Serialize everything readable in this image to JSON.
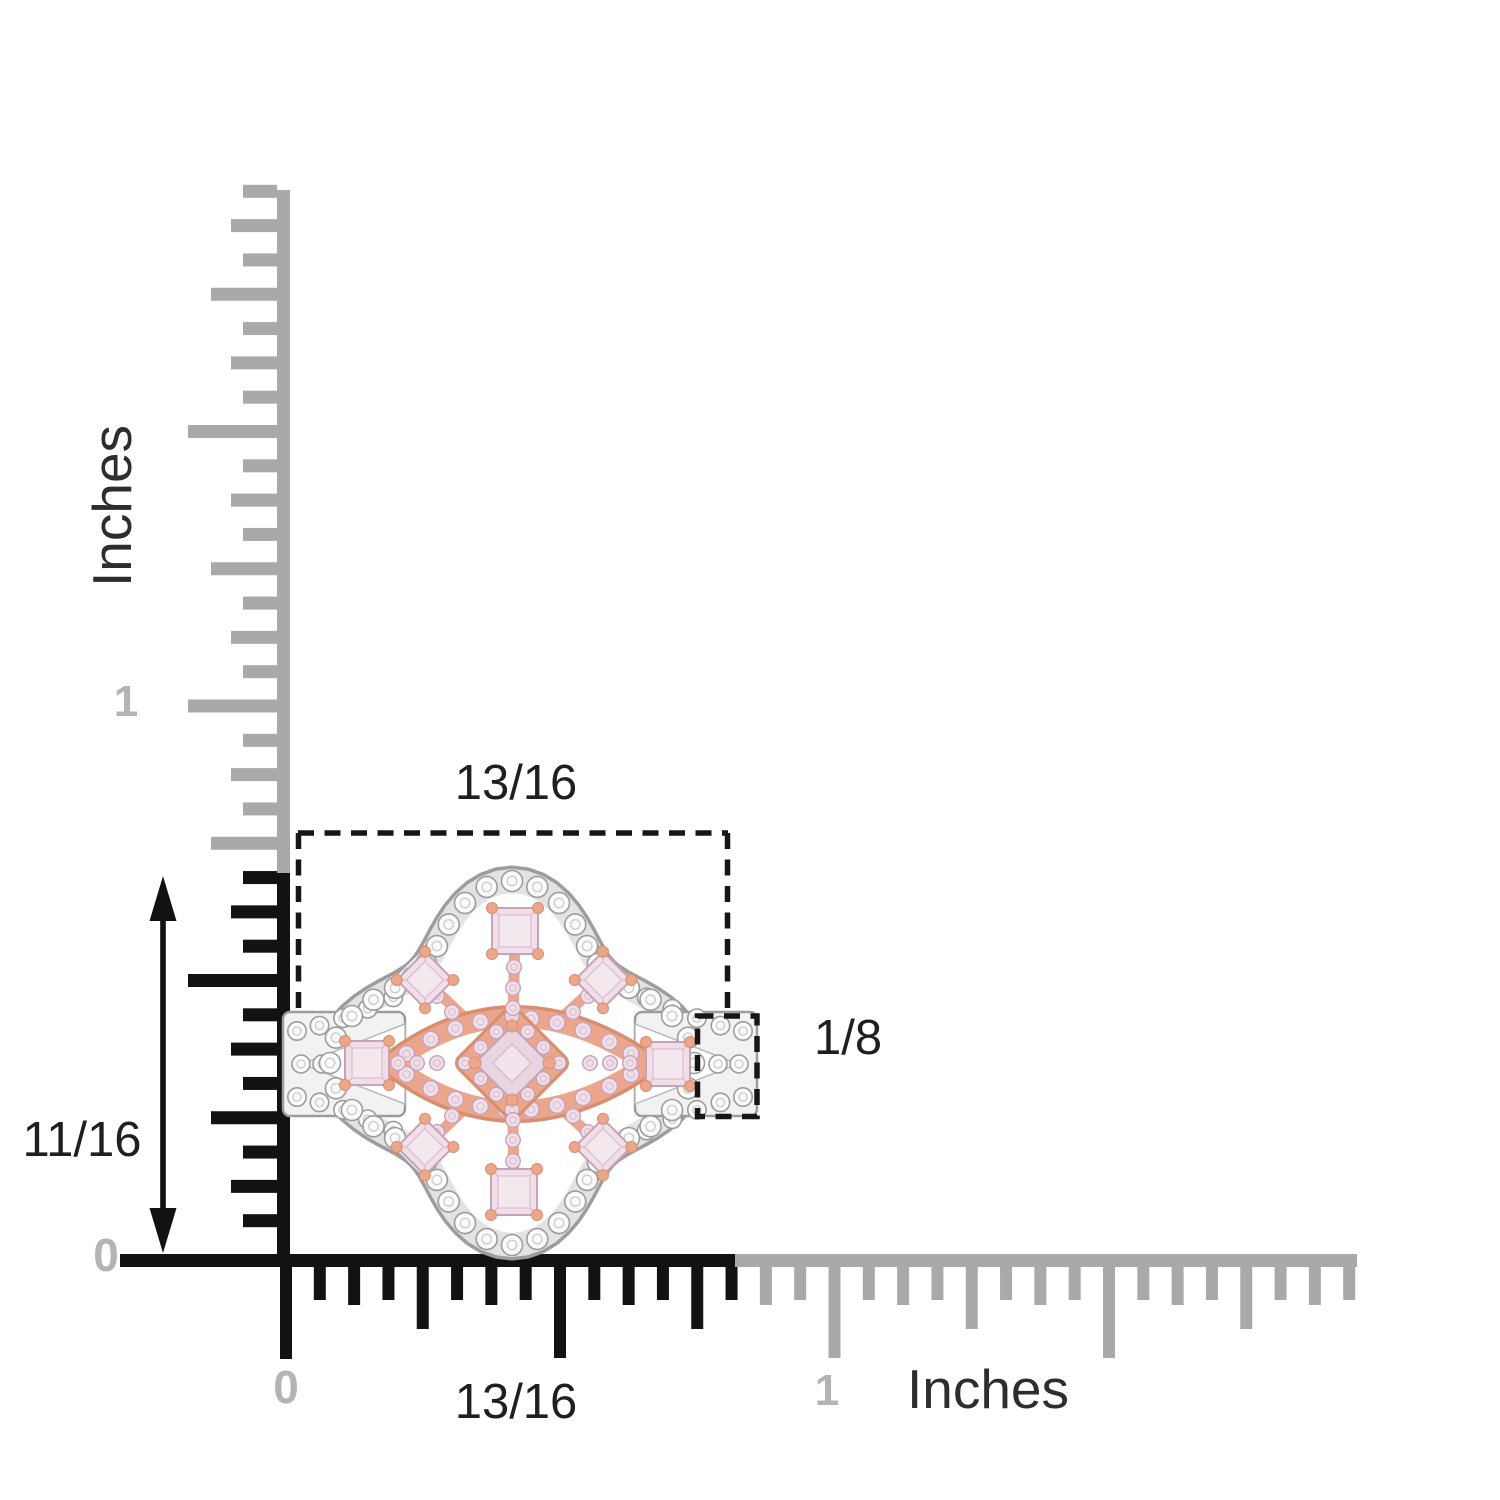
{
  "diagram": {
    "type": "product-measurement-diagram",
    "unit_system": "Inches",
    "vertical_ruler": {
      "unit_label": "Inches",
      "zero_label": "0",
      "inch_label": "1",
      "measured_span": "11/16",
      "range_inches": [
        0,
        1.94
      ]
    },
    "horizontal_ruler": {
      "unit_label": "Inches",
      "zero_label": "0",
      "inch_label": "1",
      "measured_span": "13/16",
      "range_inches": [
        0,
        1.94
      ]
    }
  },
  "labels": {
    "top_width": "13/16",
    "bottom_width": "13/16",
    "side_height": "11/16",
    "band_width": "1/8",
    "v_zero": "0",
    "v_one": "1",
    "h_zero": "0",
    "h_one": "1",
    "v_unit": "Inches",
    "h_unit": "Inches"
  },
  "product": {
    "description": "Two-tone ring with pink diamond cluster, rose gold compass motif, white diamond quatrefoil halo and split shank"
  },
  "colors": {
    "ruler_active": "#121212",
    "ruler_inactive": "#a9a9a9",
    "ruler_label_gray": "#b4b4b4",
    "annotation_text": "#1f1f1f",
    "dash_line": "#161616",
    "metal_light": "#f2f2f2",
    "metal_mid": "#e3e3e3",
    "metal_edge": "#9d9d9d",
    "white_stone": "#fbfbfb",
    "white_stone_edge": "#9c9c9c",
    "white_stone_facet": "#cdcdcd",
    "rose_gold": "#eba68b",
    "rose_gold_dark": "#d88f6d",
    "pink_stone": "#f0dfe9",
    "pink_stone_edge": "#c9a2b8",
    "pink_stone_facet": "#ddc1d0",
    "center_stone": "#e9d4e1",
    "center_stone_facet": "#d9bccb"
  }
}
